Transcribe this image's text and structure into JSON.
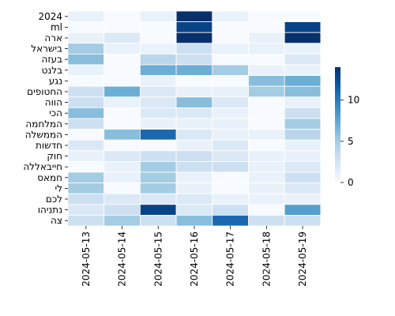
{
  "chart_data": {
    "type": "heatmap",
    "title": "",
    "xlabel": "",
    "ylabel": "",
    "x_categories": [
      "2024-05-13",
      "2024-05-14",
      "2024-05-15",
      "2024-05-16",
      "2024-05-17",
      "2024-05-18",
      "2024-05-19"
    ],
    "y_categories": [
      "2024",
      "ml",
      "ארה",
      "בישראל",
      "בעזה",
      "בלנט",
      "נגע",
      "החטופים",
      "הווה",
      "הכי",
      "המלחמה",
      "הממשלה",
      "חדשות",
      "חוק",
      "חייבאללה",
      "חמאס",
      "לי",
      "לכם",
      "נתניהו",
      "צה"
    ],
    "values": [
      [
        1,
        0,
        1,
        14,
        1,
        0,
        0
      ],
      [
        0,
        0,
        0,
        13,
        0,
        0,
        13
      ],
      [
        1,
        2,
        0,
        14,
        0,
        1,
        14
      ],
      [
        5,
        1,
        1,
        3,
        1,
        1,
        1
      ],
      [
        6,
        0,
        4,
        3,
        0,
        0,
        2
      ],
      [
        1,
        0,
        7,
        7,
        5,
        1,
        1
      ],
      [
        0,
        0,
        1,
        0,
        0,
        6,
        7
      ],
      [
        3,
        7,
        2,
        1,
        1,
        5,
        6
      ],
      [
        3,
        1,
        2,
        6,
        2,
        0,
        1
      ],
      [
        6,
        0,
        2,
        2,
        1,
        0,
        3
      ],
      [
        3,
        0,
        1,
        1,
        1,
        0,
        5
      ],
      [
        0,
        6,
        11,
        2,
        1,
        1,
        4
      ],
      [
        2,
        0,
        0,
        1,
        2,
        0,
        1
      ],
      [
        1,
        2,
        3,
        3,
        2,
        1,
        1
      ],
      [
        0,
        1,
        5,
        3,
        3,
        1,
        2
      ],
      [
        5,
        1,
        5,
        1,
        0,
        1,
        3
      ],
      [
        5,
        0,
        5,
        1,
        0,
        1,
        2
      ],
      [
        3,
        2,
        2,
        2,
        1,
        1,
        1
      ],
      [
        2,
        3,
        13,
        2,
        3,
        0,
        8
      ],
      [
        3,
        5,
        3,
        6,
        11,
        3,
        3
      ]
    ],
    "vmin": 0,
    "vmax": 14,
    "colorbar_ticks": [
      0,
      5,
      10
    ],
    "colormap": "Blues",
    "colorbar_position": "right",
    "grid_lines_color": "#ffffff"
  }
}
